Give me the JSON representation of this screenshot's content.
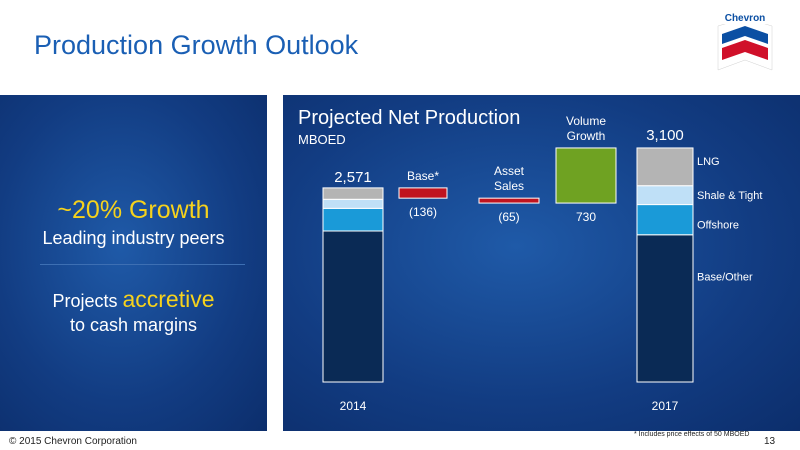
{
  "slide": {
    "title": "Production Growth Outlook",
    "logo_text": "Chevron",
    "footer": "© 2015 Chevron Corporation",
    "footnote": "* Includes price effects of 50 MBOED",
    "page_number": "13"
  },
  "left_panel": {
    "growth": "~20% Growth",
    "growth_sub": "Leading industry peers",
    "projects_prefix": "Projects ",
    "projects_accent": "accretive",
    "projects_sub": "to cash margins"
  },
  "colors": {
    "title_blue": "#1a5fb4",
    "accent_yellow": "#f6d21c",
    "base_other": "#0a2a55",
    "offshore": "#1a9ad8",
    "shale_tight": "#bfe0f7",
    "lng": "#b4b4b4",
    "decline": "#c0141f",
    "growth": "#6fa222"
  },
  "chart_data": {
    "type": "waterfall",
    "title": "Projected Net Production",
    "unit": "MBOED",
    "start": {
      "category": "2014",
      "total": 2571,
      "total_label": "2,571",
      "segments": [
        {
          "name": "Base/Other",
          "value": 2000
        },
        {
          "name": "Offshore",
          "value": 300
        },
        {
          "name": "Shale & Tight",
          "value": 120
        },
        {
          "name": "LNG",
          "value": 151
        }
      ]
    },
    "steps": [
      {
        "label": "Base*",
        "value": -136,
        "value_label": "(136)"
      },
      {
        "label": "Asset Sales",
        "value": -65,
        "value_label": "(65)"
      },
      {
        "label": "Volume Growth",
        "value": 730,
        "value_label": "730"
      }
    ],
    "end": {
      "category": "2017",
      "total": 3100,
      "total_label": "3,100",
      "segments": [
        {
          "name": "Base/Other",
          "value": 1950
        },
        {
          "name": "Offshore",
          "value": 400
        },
        {
          "name": "Shale & Tight",
          "value": 250
        },
        {
          "name": "LNG",
          "value": 500
        }
      ]
    },
    "legend": [
      "LNG",
      "Shale & Tight",
      "Offshore",
      "Base/Other"
    ]
  }
}
